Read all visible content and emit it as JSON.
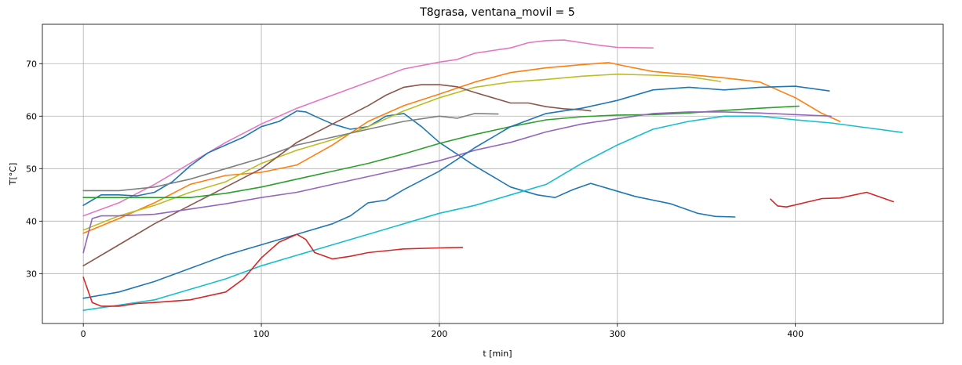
{
  "chart_data": {
    "type": "line",
    "title": "T8grasa, ventana_movil = 5",
    "xlabel": "t [min]",
    "ylabel": "T[°C]",
    "xlim": [
      -23,
      483
    ],
    "ylim": [
      20.5,
      77.5
    ],
    "xticks": [
      0,
      100,
      200,
      300,
      400
    ],
    "yticks": [
      30,
      40,
      50,
      60,
      70
    ],
    "grid": true,
    "series": [
      {
        "color": "#e377c2",
        "points": [
          [
            0,
            41
          ],
          [
            20,
            43.5
          ],
          [
            40,
            47
          ],
          [
            60,
            51
          ],
          [
            80,
            55
          ],
          [
            100,
            58.5
          ],
          [
            120,
            61.5
          ],
          [
            140,
            64
          ],
          [
            160,
            66.5
          ],
          [
            180,
            69
          ],
          [
            200,
            70.3
          ],
          [
            210,
            70.8
          ],
          [
            220,
            72
          ],
          [
            230,
            72.5
          ],
          [
            240,
            73
          ],
          [
            250,
            74
          ],
          [
            260,
            74.4
          ],
          [
            270,
            74.5
          ],
          [
            280,
            74
          ],
          [
            290,
            73.5
          ],
          [
            300,
            73.1
          ],
          [
            320,
            73
          ]
        ]
      },
      {
        "color": "#1f77b4",
        "points": [
          [
            0,
            43
          ],
          [
            5,
            44
          ],
          [
            10,
            45
          ],
          [
            20,
            45
          ],
          [
            30,
            44.8
          ],
          [
            40,
            45.5
          ],
          [
            50,
            47.5
          ],
          [
            60,
            50.5
          ],
          [
            70,
            53
          ],
          [
            80,
            54.5
          ],
          [
            90,
            56
          ],
          [
            100,
            58
          ],
          [
            110,
            59
          ],
          [
            115,
            60
          ],
          [
            120,
            61
          ],
          [
            125,
            60.8
          ],
          [
            130,
            60
          ],
          [
            140,
            58.5
          ],
          [
            150,
            57.5
          ],
          [
            160,
            58
          ],
          [
            170,
            60
          ],
          [
            180,
            60.5
          ],
          [
            190,
            58
          ],
          [
            200,
            55
          ],
          [
            220,
            50.5
          ],
          [
            240,
            46.5
          ],
          [
            255,
            45
          ],
          [
            265,
            44.5
          ],
          [
            275,
            46
          ],
          [
            285,
            47.2
          ],
          [
            295,
            46.2
          ],
          [
            310,
            44.7
          ],
          [
            330,
            43.3
          ],
          [
            345,
            41.5
          ],
          [
            355,
            40.9
          ],
          [
            366,
            40.8
          ]
        ]
      },
      {
        "color": "#ff7f0e",
        "points": [
          [
            0,
            37.7
          ],
          [
            20,
            40.5
          ],
          [
            40,
            43.5
          ],
          [
            60,
            47
          ],
          [
            80,
            48.7
          ],
          [
            100,
            49.3
          ],
          [
            120,
            50.7
          ],
          [
            140,
            54.5
          ],
          [
            160,
            59
          ],
          [
            180,
            62
          ],
          [
            200,
            64.2
          ],
          [
            220,
            66.5
          ],
          [
            240,
            68.3
          ],
          [
            260,
            69.2
          ],
          [
            280,
            69.8
          ],
          [
            295,
            70.2
          ],
          [
            305,
            69.5
          ],
          [
            320,
            68.5
          ],
          [
            340,
            67.9
          ],
          [
            360,
            67.3
          ],
          [
            380,
            66.5
          ],
          [
            400,
            63.5
          ],
          [
            415,
            60.5
          ],
          [
            425,
            59
          ]
        ]
      },
      {
        "color": "#bcbd22",
        "points": [
          [
            0,
            38.3
          ],
          [
            20,
            41
          ],
          [
            40,
            43
          ],
          [
            60,
            45.5
          ],
          [
            80,
            47.5
          ],
          [
            100,
            51
          ],
          [
            120,
            53.5
          ],
          [
            140,
            55.5
          ],
          [
            160,
            58
          ],
          [
            180,
            61
          ],
          [
            200,
            63.5
          ],
          [
            220,
            65.5
          ],
          [
            240,
            66.5
          ],
          [
            260,
            67
          ],
          [
            280,
            67.6
          ],
          [
            300,
            68
          ],
          [
            320,
            67.8
          ],
          [
            340,
            67.5
          ],
          [
            358,
            66.6
          ]
        ]
      },
      {
        "color": "#8c564b",
        "points": [
          [
            0,
            31.5
          ],
          [
            20,
            35.5
          ],
          [
            40,
            39.5
          ],
          [
            60,
            43
          ],
          [
            80,
            46.5
          ],
          [
            100,
            50
          ],
          [
            120,
            55
          ],
          [
            140,
            58.5
          ],
          [
            160,
            62
          ],
          [
            170,
            64
          ],
          [
            180,
            65.5
          ],
          [
            190,
            66
          ],
          [
            200,
            66
          ],
          [
            210,
            65.6
          ],
          [
            220,
            64.5
          ],
          [
            230,
            63.5
          ],
          [
            240,
            62.5
          ],
          [
            250,
            62.5
          ],
          [
            260,
            61.8
          ],
          [
            270,
            61.4
          ],
          [
            280,
            61.2
          ],
          [
            285,
            61
          ]
        ]
      },
      {
        "color": "#7f7f7f",
        "points": [
          [
            0,
            45.8
          ],
          [
            20,
            45.8
          ],
          [
            40,
            46.5
          ],
          [
            60,
            48
          ],
          [
            80,
            50
          ],
          [
            100,
            52
          ],
          [
            120,
            54.5
          ],
          [
            140,
            56
          ],
          [
            160,
            57.5
          ],
          [
            180,
            59
          ],
          [
            200,
            60
          ],
          [
            210,
            59.6
          ],
          [
            220,
            60.5
          ],
          [
            233,
            60.4
          ]
        ]
      },
      {
        "color": "#2ca02c",
        "points": [
          [
            0,
            44.5
          ],
          [
            20,
            44.5
          ],
          [
            40,
            44.5
          ],
          [
            60,
            44.5
          ],
          [
            80,
            45.3
          ],
          [
            100,
            46.5
          ],
          [
            120,
            48
          ],
          [
            140,
            49.5
          ],
          [
            160,
            51
          ],
          [
            180,
            52.8
          ],
          [
            200,
            54.8
          ],
          [
            220,
            56.5
          ],
          [
            240,
            58
          ],
          [
            260,
            59.3
          ],
          [
            280,
            59.9
          ],
          [
            300,
            60.2
          ],
          [
            320,
            60.3
          ],
          [
            340,
            60.6
          ],
          [
            360,
            61.1
          ],
          [
            380,
            61.5
          ],
          [
            402,
            61.9
          ]
        ]
      },
      {
        "color": "#9467bd",
        "points": [
          [
            0,
            34
          ],
          [
            5,
            40.5
          ],
          [
            10,
            41
          ],
          [
            20,
            41
          ],
          [
            40,
            41.3
          ],
          [
            60,
            42.3
          ],
          [
            80,
            43.3
          ],
          [
            100,
            44.5
          ],
          [
            120,
            45.5
          ],
          [
            140,
            47
          ],
          [
            160,
            48.5
          ],
          [
            180,
            50
          ],
          [
            200,
            51.5
          ],
          [
            220,
            53.5
          ],
          [
            240,
            55
          ],
          [
            260,
            57
          ],
          [
            280,
            58.5
          ],
          [
            300,
            59.5
          ],
          [
            320,
            60.5
          ],
          [
            340,
            60.8
          ],
          [
            360,
            60.8
          ],
          [
            380,
            60.6
          ],
          [
            400,
            60.3
          ],
          [
            420,
            60
          ]
        ]
      },
      {
        "color": "#1f77b4",
        "points": [
          [
            0,
            25.3
          ],
          [
            20,
            26.5
          ],
          [
            40,
            28.5
          ],
          [
            60,
            31
          ],
          [
            80,
            33.5
          ],
          [
            100,
            35.5
          ],
          [
            120,
            37.5
          ],
          [
            140,
            39.5
          ],
          [
            150,
            41
          ],
          [
            160,
            43.5
          ],
          [
            170,
            44
          ],
          [
            180,
            46
          ],
          [
            200,
            49.5
          ],
          [
            220,
            54
          ],
          [
            240,
            58
          ],
          [
            260,
            60.5
          ],
          [
            280,
            61.5
          ],
          [
            300,
            63
          ],
          [
            320,
            65
          ],
          [
            340,
            65.5
          ],
          [
            360,
            65
          ],
          [
            380,
            65.5
          ],
          [
            400,
            65.7
          ],
          [
            419,
            64.8
          ]
        ]
      },
      {
        "color": "#17becf",
        "points": [
          [
            0,
            23
          ],
          [
            20,
            24
          ],
          [
            40,
            25
          ],
          [
            60,
            27
          ],
          [
            80,
            29
          ],
          [
            100,
            31.5
          ],
          [
            120,
            33.5
          ],
          [
            140,
            35.5
          ],
          [
            160,
            37.5
          ],
          [
            180,
            39.5
          ],
          [
            200,
            41.5
          ],
          [
            220,
            43
          ],
          [
            240,
            45
          ],
          [
            260,
            47
          ],
          [
            280,
            51
          ],
          [
            300,
            54.5
          ],
          [
            320,
            57.5
          ],
          [
            340,
            59
          ],
          [
            360,
            60
          ],
          [
            380,
            60
          ],
          [
            400,
            59.3
          ],
          [
            420,
            58.7
          ],
          [
            440,
            57.8
          ],
          [
            460,
            56.9
          ]
        ]
      },
      {
        "color": "#d62728",
        "points": [
          [
            0,
            29.3
          ],
          [
            5,
            24.5
          ],
          [
            10,
            23.8
          ],
          [
            20,
            23.8
          ],
          [
            30,
            24.3
          ],
          [
            40,
            24.5
          ],
          [
            60,
            25
          ],
          [
            80,
            26.5
          ],
          [
            90,
            29
          ],
          [
            100,
            33
          ],
          [
            110,
            36
          ],
          [
            120,
            37.5
          ],
          [
            125,
            36.5
          ],
          [
            130,
            34
          ],
          [
            140,
            32.8
          ],
          [
            150,
            33.3
          ],
          [
            160,
            34
          ],
          [
            180,
            34.7
          ],
          [
            200,
            34.9
          ],
          [
            213,
            35
          ]
        ]
      },
      {
        "color": "#d62728",
        "points": [
          [
            386,
            44.2
          ],
          [
            390,
            42.9
          ],
          [
            395,
            42.7
          ],
          [
            405,
            43.5
          ],
          [
            415,
            44.3
          ],
          [
            425,
            44.4
          ],
          [
            440,
            45.5
          ],
          [
            455,
            43.7
          ]
        ]
      }
    ]
  }
}
